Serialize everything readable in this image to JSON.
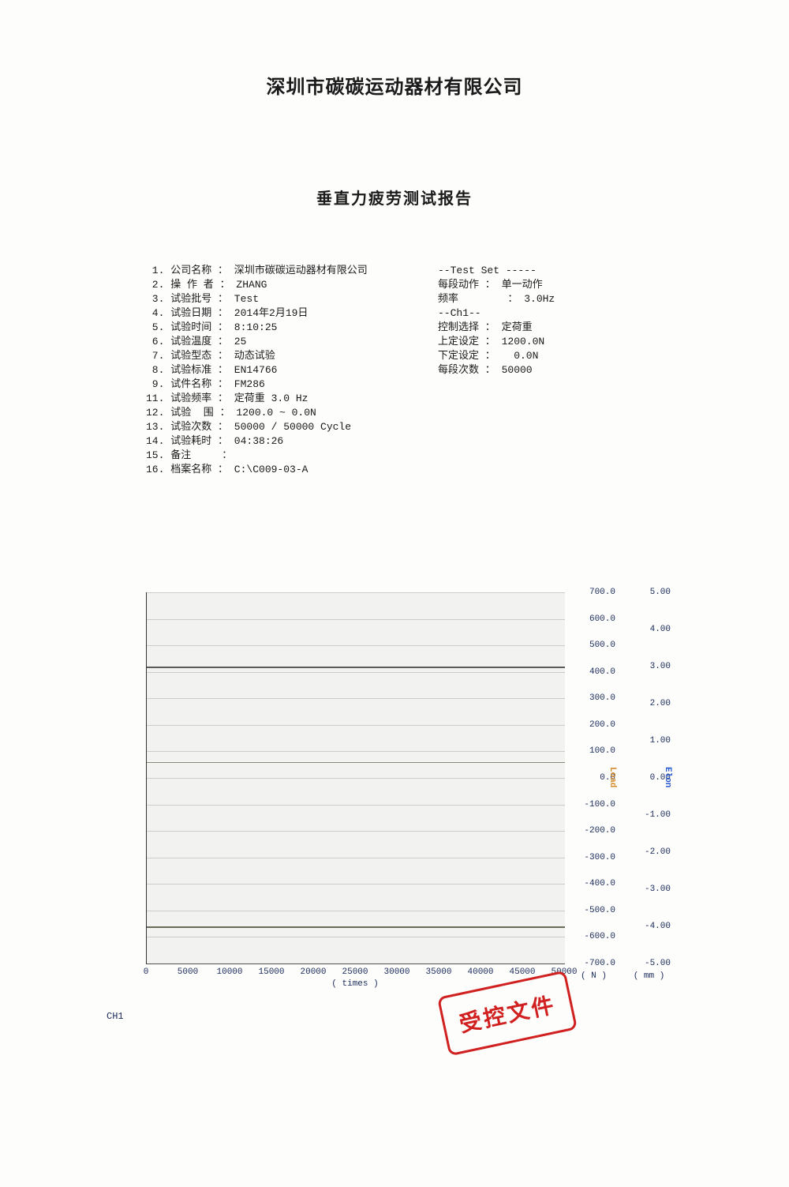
{
  "company": "深圳市碳碳运动器材有限公司",
  "report_title": "垂直力疲劳测试报告",
  "left_rows": [
    " 1. 公司名称 ： 深圳市碳碳运动器材有限公司",
    " 2. 操 作 者 ： ZHANG",
    " 3. 试验批号 ： Test",
    " 4. 试验日期 ： 2014年2月19日",
    " 5. 试验时间 ： 8:10:25",
    " 6. 试验温度 ： 25",
    " 7. 试验型态 ： 动态试验",
    " 8. 试验标准 ： EN14766",
    " 9. 试件名称 ： FM286",
    "11. 试验频率 ： 定荷重 3.0 Hz",
    "12. 试验  围 ： 1200.0 ~ 0.0N",
    "13. 试验次数 ： 50000 / 50000 Cycle",
    "14. 试验耗时 ： 04:38:26",
    "15. 备注     ：",
    "16. 档案名称 ： C:\\C009-03-A"
  ],
  "right_rows": [
    "--Test Set -----",
    "每段动作 ： 单一动作",
    "频率        ： 3.0Hz",
    "--Ch1--",
    "控制选择 ： 定荷重",
    "上定设定 ： 1200.0N",
    "下定设定 ：   0.0N",
    "每段次数 ： 50000"
  ],
  "chart": {
    "x_ticks": [
      "0",
      "5000",
      "10000",
      "15000",
      "20000",
      "25000",
      "30000",
      "35000",
      "40000",
      "45000",
      "50000"
    ],
    "x_label": "( times )",
    "y1_ticks": [
      "700.0",
      "600.0",
      "500.0",
      "400.0",
      "300.0",
      "200.0",
      "100.0",
      "0.0",
      "-100.0",
      "-200.0",
      "-300.0",
      "-400.0",
      "-500.0",
      "-600.0",
      "-700.0"
    ],
    "y1_unit": "( N )",
    "y1_axis_label": "Load",
    "y1_label_color": "#d88a2a",
    "y2_ticks": [
      "5.00",
      "4.00",
      "3.00",
      "2.00",
      "1.00",
      "0.00",
      "-1.00",
      "-2.00",
      "-3.00",
      "-4.00",
      "-5.00"
    ],
    "y2_unit": "( mm )",
    "y2_axis_label": "Elon",
    "y2_label_color": "#2a5ad0",
    "series": [
      {
        "color": "#5a5a5a",
        "value_y1": 420
      },
      {
        "color": "#8a8a78",
        "value_y1": 60
      },
      {
        "color": "#6a6a58",
        "value_y1": -560
      }
    ],
    "grid_color": "#888888",
    "bg_color": "#f2f2f0",
    "ch1_label": "CH1"
  },
  "stamp_text": "受控文件"
}
